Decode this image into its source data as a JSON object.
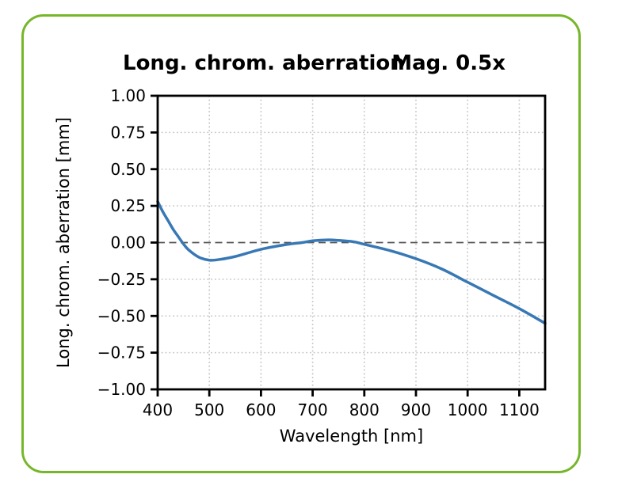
{
  "card": {
    "border_color": "#76b72a",
    "background_color": "#ffffff"
  },
  "header": {
    "title_left": "Long. chrom. aberration",
    "title_right": "Mag. 0.5x"
  },
  "chart_data": {
    "type": "line",
    "title": "Long. chrom. aberration",
    "annotation": "Mag. 0.5x",
    "xlabel": "Wavelength [nm]",
    "ylabel": "Long. chrom. aberration [mm]",
    "xlim": [
      400,
      1150
    ],
    "ylim": [
      -1.0,
      1.0
    ],
    "x_ticks": [
      400,
      500,
      600,
      700,
      800,
      900,
      1000,
      1100
    ],
    "x_tick_labels": [
      "400",
      "500",
      "600",
      "700",
      "800",
      "900",
      "1000",
      "1100"
    ],
    "y_ticks": [
      1.0,
      0.75,
      0.5,
      0.25,
      0.0,
      -0.25,
      -0.5,
      -0.75,
      -1.0
    ],
    "y_tick_labels": [
      "1.00",
      "0.75",
      "0.50",
      "0.25",
      "0.00",
      "−0.25",
      "−0.50",
      "−0.75",
      "−1.00"
    ],
    "grid": true,
    "grid_style": "dotted",
    "grid_color": "#c4c4c4",
    "zero_line": {
      "y": 0.0,
      "style": "dashed",
      "color": "#555555"
    },
    "legend": "none",
    "series": [
      {
        "name": "longitudinal-chromatic-aberration",
        "color": "#3878b4",
        "line_width": 3.5,
        "x": [
          400,
          410,
          420,
          430,
          440,
          450,
          460,
          480,
          500,
          520,
          550,
          600,
          650,
          680,
          700,
          730,
          750,
          780,
          800,
          850,
          900,
          950,
          1000,
          1050,
          1100,
          1150
        ],
        "y": [
          0.28,
          0.21,
          0.15,
          0.09,
          0.04,
          -0.01,
          -0.05,
          -0.1,
          -0.12,
          -0.115,
          -0.095,
          -0.046,
          -0.013,
          0.0,
          0.012,
          0.018,
          0.015,
          0.005,
          -0.012,
          -0.055,
          -0.11,
          -0.18,
          -0.27,
          -0.36,
          -0.45,
          -0.55
        ]
      }
    ]
  },
  "layout_colors": {
    "spine_color": "#000000",
    "text_color": "#000000"
  }
}
